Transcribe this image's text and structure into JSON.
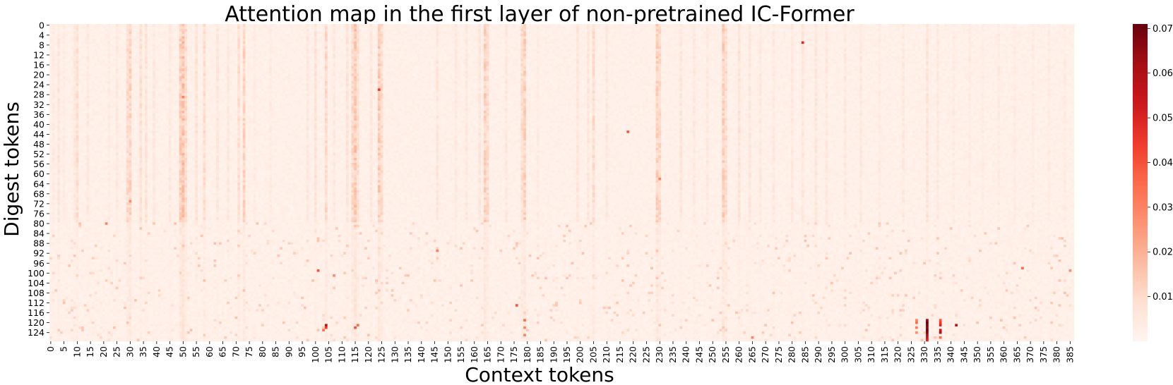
{
  "chart_data": {
    "type": "heatmap",
    "title": "Attention map in the first layer of non-pretrained IC-Former",
    "xlabel": "Context tokens",
    "ylabel": "Digest tokens",
    "colormap": "Reds",
    "colors": {
      "low": "#fff5f0",
      "high": "#67000d"
    },
    "x_count": 387,
    "y_count": 128,
    "x_tick_step": 5,
    "y_tick_step": 4,
    "xticks": [
      0,
      5,
      10,
      15,
      20,
      25,
      30,
      35,
      40,
      45,
      50,
      55,
      60,
      65,
      70,
      75,
      80,
      85,
      90,
      95,
      100,
      105,
      110,
      115,
      120,
      125,
      130,
      135,
      140,
      145,
      150,
      155,
      160,
      165,
      170,
      175,
      180,
      185,
      190,
      195,
      200,
      205,
      210,
      215,
      220,
      225,
      230,
      235,
      240,
      245,
      250,
      255,
      260,
      265,
      270,
      275,
      280,
      285,
      290,
      295,
      300,
      305,
      310,
      315,
      320,
      325,
      330,
      335,
      340,
      345,
      350,
      355,
      360,
      365,
      370,
      375,
      380,
      385
    ],
    "yticks": [
      0,
      4,
      8,
      12,
      16,
      20,
      24,
      28,
      32,
      36,
      40,
      44,
      48,
      52,
      56,
      60,
      64,
      68,
      72,
      76,
      80,
      84,
      88,
      92,
      96,
      100,
      104,
      108,
      112,
      116,
      120,
      124
    ],
    "vmin": 0.0,
    "vmax": 0.071,
    "colorbar_ticks": [
      0.01,
      0.02,
      0.03,
      0.04,
      0.05,
      0.06,
      0.07
    ],
    "colorbar_tick_labels": [
      "0.01",
      "0.02",
      "0.03",
      "0.04",
      "0.05",
      "0.06",
      "0.07"
    ],
    "background_value": 0.001,
    "active_columns": [
      {
        "x": 1,
        "v": 0.004
      },
      {
        "x": 3,
        "v": 0.006
      },
      {
        "x": 5,
        "v": 0.004
      },
      {
        "x": 9,
        "v": 0.005
      },
      {
        "x": 10,
        "v": 0.008
      },
      {
        "x": 14,
        "v": 0.005
      },
      {
        "x": 22,
        "v": 0.004
      },
      {
        "x": 25,
        "v": 0.005
      },
      {
        "x": 29,
        "v": 0.009
      },
      {
        "x": 30,
        "v": 0.011
      },
      {
        "x": 34,
        "v": 0.008
      },
      {
        "x": 36,
        "v": 0.007
      },
      {
        "x": 39,
        "v": 0.005
      },
      {
        "x": 45,
        "v": 0.005
      },
      {
        "x": 49,
        "v": 0.012
      },
      {
        "x": 50,
        "v": 0.015
      },
      {
        "x": 51,
        "v": 0.009
      },
      {
        "x": 55,
        "v": 0.007
      },
      {
        "x": 58,
        "v": 0.009
      },
      {
        "x": 63,
        "v": 0.006
      },
      {
        "x": 67,
        "v": 0.005
      },
      {
        "x": 71,
        "v": 0.008
      },
      {
        "x": 73,
        "v": 0.011
      },
      {
        "x": 77,
        "v": 0.004
      },
      {
        "x": 83,
        "v": 0.004
      },
      {
        "x": 97,
        "v": 0.005
      },
      {
        "x": 100,
        "v": 0.007
      },
      {
        "x": 104,
        "v": 0.01
      },
      {
        "x": 107,
        "v": 0.005
      },
      {
        "x": 112,
        "v": 0.007
      },
      {
        "x": 114,
        "v": 0.01
      },
      {
        "x": 115,
        "v": 0.014
      },
      {
        "x": 116,
        "v": 0.008
      },
      {
        "x": 121,
        "v": 0.006
      },
      {
        "x": 124,
        "v": 0.013
      },
      {
        "x": 125,
        "v": 0.009
      },
      {
        "x": 146,
        "v": 0.006
      },
      {
        "x": 153,
        "v": 0.005
      },
      {
        "x": 157,
        "v": 0.005
      },
      {
        "x": 162,
        "v": 0.006
      },
      {
        "x": 164,
        "v": 0.012
      },
      {
        "x": 165,
        "v": 0.009
      },
      {
        "x": 172,
        "v": 0.005
      },
      {
        "x": 178,
        "v": 0.009
      },
      {
        "x": 179,
        "v": 0.012
      },
      {
        "x": 184,
        "v": 0.004
      },
      {
        "x": 199,
        "v": 0.006
      },
      {
        "x": 203,
        "v": 0.006
      },
      {
        "x": 205,
        "v": 0.009
      },
      {
        "x": 210,
        "v": 0.005
      },
      {
        "x": 229,
        "v": 0.012
      },
      {
        "x": 230,
        "v": 0.01
      },
      {
        "x": 238,
        "v": 0.006
      },
      {
        "x": 243,
        "v": 0.005
      },
      {
        "x": 248,
        "v": 0.005
      },
      {
        "x": 254,
        "v": 0.012
      },
      {
        "x": 255,
        "v": 0.009
      },
      {
        "x": 260,
        "v": 0.007
      },
      {
        "x": 264,
        "v": 0.006
      },
      {
        "x": 268,
        "v": 0.005
      },
      {
        "x": 273,
        "v": 0.005
      },
      {
        "x": 280,
        "v": 0.005
      },
      {
        "x": 284,
        "v": 0.006
      },
      {
        "x": 289,
        "v": 0.006
      },
      {
        "x": 293,
        "v": 0.005
      },
      {
        "x": 300,
        "v": 0.005
      },
      {
        "x": 306,
        "v": 0.005
      },
      {
        "x": 313,
        "v": 0.004
      },
      {
        "x": 322,
        "v": 0.005
      },
      {
        "x": 331,
        "v": 0.007
      },
      {
        "x": 335,
        "v": 0.005
      },
      {
        "x": 341,
        "v": 0.004
      },
      {
        "x": 347,
        "v": 0.004
      },
      {
        "x": 352,
        "v": 0.004
      },
      {
        "x": 358,
        "v": 0.004
      },
      {
        "x": 364,
        "v": 0.004
      },
      {
        "x": 371,
        "v": 0.004
      },
      {
        "x": 377,
        "v": 0.004
      },
      {
        "x": 383,
        "v": 0.004
      }
    ],
    "hot_cells": [
      {
        "x": 331,
        "y": 119,
        "v": 0.065
      },
      {
        "x": 331,
        "y": 120,
        "v": 0.071
      },
      {
        "x": 331,
        "y": 121,
        "v": 0.068
      },
      {
        "x": 331,
        "y": 122,
        "v": 0.066
      },
      {
        "x": 331,
        "y": 123,
        "v": 0.07
      },
      {
        "x": 331,
        "y": 124,
        "v": 0.067
      },
      {
        "x": 331,
        "y": 125,
        "v": 0.06
      },
      {
        "x": 331,
        "y": 126,
        "v": 0.055
      },
      {
        "x": 331,
        "y": 127,
        "v": 0.05
      },
      {
        "x": 336,
        "y": 119,
        "v": 0.04
      },
      {
        "x": 336,
        "y": 120,
        "v": 0.045
      },
      {
        "x": 336,
        "y": 121,
        "v": 0.05
      },
      {
        "x": 336,
        "y": 123,
        "v": 0.055
      },
      {
        "x": 336,
        "y": 124,
        "v": 0.06
      },
      {
        "x": 336,
        "y": 126,
        "v": 0.035
      },
      {
        "x": 327,
        "y": 119,
        "v": 0.03
      },
      {
        "x": 327,
        "y": 120,
        "v": 0.035
      },
      {
        "x": 327,
        "y": 122,
        "v": 0.032
      },
      {
        "x": 327,
        "y": 124,
        "v": 0.028
      },
      {
        "x": 342,
        "y": 121,
        "v": 0.06
      },
      {
        "x": 104,
        "y": 121,
        "v": 0.058
      },
      {
        "x": 104,
        "y": 122,
        "v": 0.045
      },
      {
        "x": 103,
        "y": 123,
        "v": 0.035
      },
      {
        "x": 115,
        "y": 122,
        "v": 0.04
      },
      {
        "x": 116,
        "y": 121,
        "v": 0.035
      },
      {
        "x": 179,
        "y": 119,
        "v": 0.035
      },
      {
        "x": 179,
        "y": 122,
        "v": 0.03
      },
      {
        "x": 179,
        "y": 125,
        "v": 0.03
      },
      {
        "x": 176,
        "y": 113,
        "v": 0.04
      },
      {
        "x": 124,
        "y": 26,
        "v": 0.045
      },
      {
        "x": 284,
        "y": 7,
        "v": 0.05
      },
      {
        "x": 218,
        "y": 43,
        "v": 0.04
      },
      {
        "x": 101,
        "y": 99,
        "v": 0.04
      },
      {
        "x": 367,
        "y": 98,
        "v": 0.035
      },
      {
        "x": 50,
        "y": 29,
        "v": 0.03
      },
      {
        "x": 30,
        "y": 71,
        "v": 0.028
      },
      {
        "x": 230,
        "y": 62,
        "v": 0.03
      },
      {
        "x": 146,
        "y": 91,
        "v": 0.03
      },
      {
        "x": 21,
        "y": 80,
        "v": 0.03
      },
      {
        "x": 107,
        "y": 101,
        "v": 0.028
      },
      {
        "x": 265,
        "y": 126,
        "v": 0.03
      },
      {
        "x": 385,
        "y": 99,
        "v": 0.028
      }
    ]
  }
}
